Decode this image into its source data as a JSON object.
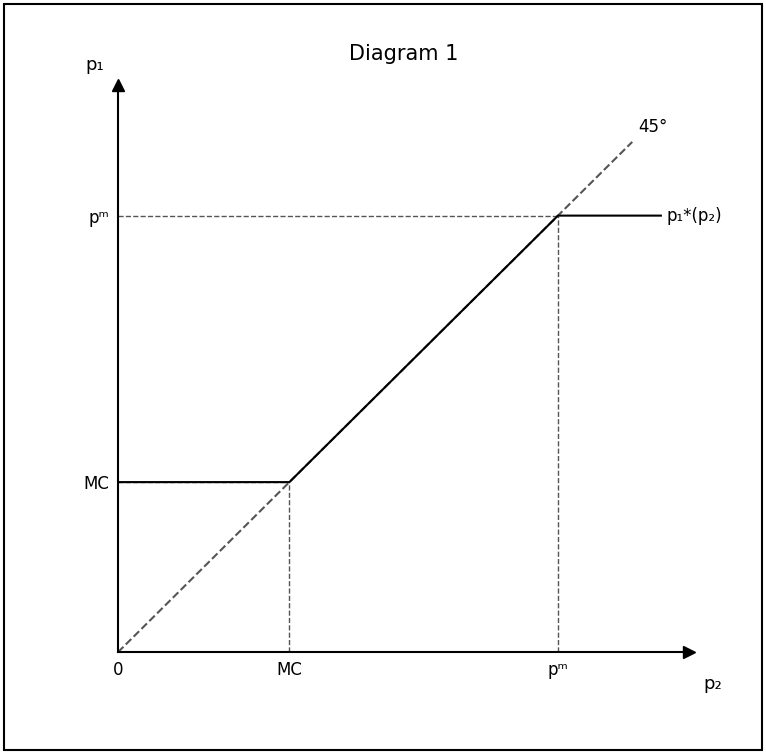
{
  "chart_data": {
    "type": "line",
    "title": "Diagram 1",
    "x_label": "p₂",
    "y_label": "p₁",
    "xlim": [
      0,
      10
    ],
    "ylim": [
      0,
      10
    ],
    "xticks": [
      0,
      {
        "value": 3,
        "label": "MC"
      },
      {
        "value": 7.7,
        "label": "pᵐ"
      }
    ],
    "yticks": [
      {
        "value": 3,
        "label": "MC"
      },
      {
        "value": 7.7,
        "label": "pᵐ"
      }
    ],
    "grid": false,
    "series": [
      {
        "name": "45°",
        "color": "#555555",
        "line_style": "dashed",
        "x": [
          0,
          9
        ],
        "values": [
          0,
          9
        ]
      },
      {
        "name": "p₁*(p₂)",
        "color": "#000000",
        "line_style": "solid",
        "x": [
          0,
          3,
          7.7,
          9.5
        ],
        "values": [
          3,
          3,
          7.7,
          7.7
        ]
      }
    ]
  }
}
